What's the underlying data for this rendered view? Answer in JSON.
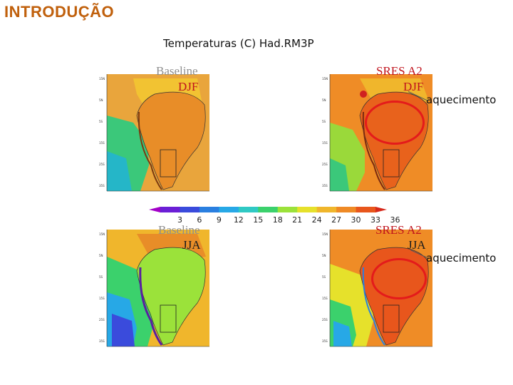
{
  "slide": {
    "heading": "INTRODUÇÃO",
    "subtitle": "Temperaturas (C) Had.RM3P"
  },
  "panels": {
    "baseline_djf": {
      "scenario": "Baseline",
      "season": "DJF",
      "palette": "baseline"
    },
    "a2_djf": {
      "scenario": "SRES A2",
      "season": "DJF",
      "palette": "warm",
      "annotation": "aquecimento"
    },
    "baseline_jja": {
      "scenario": "Baseline",
      "season": "JJA",
      "palette": "baseline_cold"
    },
    "a2_jja": {
      "scenario": "SRES A2",
      "season": "JJA",
      "palette": "warm",
      "annotation": "aquecimento"
    }
  },
  "colorbar": {
    "ticks": [
      "3",
      "6",
      "9",
      "12",
      "15",
      "18",
      "21",
      "24",
      "27",
      "30",
      "33",
      "36"
    ],
    "colors": [
      "#a200c8",
      "#6b1fd6",
      "#3a4bdc",
      "#2a7fe0",
      "#27a8e6",
      "#2fc9c4",
      "#3bd16c",
      "#9be23a",
      "#e6e12b",
      "#f0b62c",
      "#ef8a25",
      "#e8561c",
      "#d6281a"
    ]
  },
  "colors": {
    "heading": "#c0600c",
    "highlight_ring": "#e41b1b"
  }
}
